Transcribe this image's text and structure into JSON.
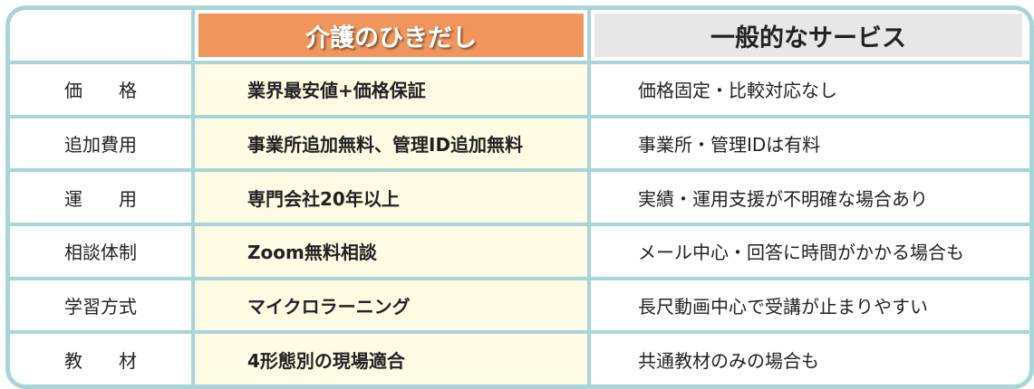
{
  "header": {
    "ours": "介護のひきだし",
    "general": "一般的なサービス"
  },
  "colors": {
    "border": "#a8d6d8",
    "ours_header": "#f0965c",
    "ours_cell": "#fffbe4",
    "general_header": "#e7e7e7"
  },
  "rows": [
    {
      "label": "価　　格",
      "ours": "業界最安値+価格保証",
      "general": "価格固定・比較対応なし"
    },
    {
      "label": "追加費用",
      "ours": "事業所追加無料、管理ID追加無料",
      "general": "事業所・管理IDは有料"
    },
    {
      "label": "運　　用",
      "ours": "専門会社20年以上",
      "general": "実績・運用支援が不明確な場合あり"
    },
    {
      "label": "相談体制",
      "ours": "Zoom無料相談",
      "general": "メール中心・回答に時間がかかる場合も"
    },
    {
      "label": "学習方式",
      "ours": "マイクロラーニング",
      "general": "長尺動画中心で受講が止まりやすい"
    },
    {
      "label": "教　　材",
      "ours": "4形態別の現場適合",
      "general": "共通教材のみの場合も"
    }
  ]
}
